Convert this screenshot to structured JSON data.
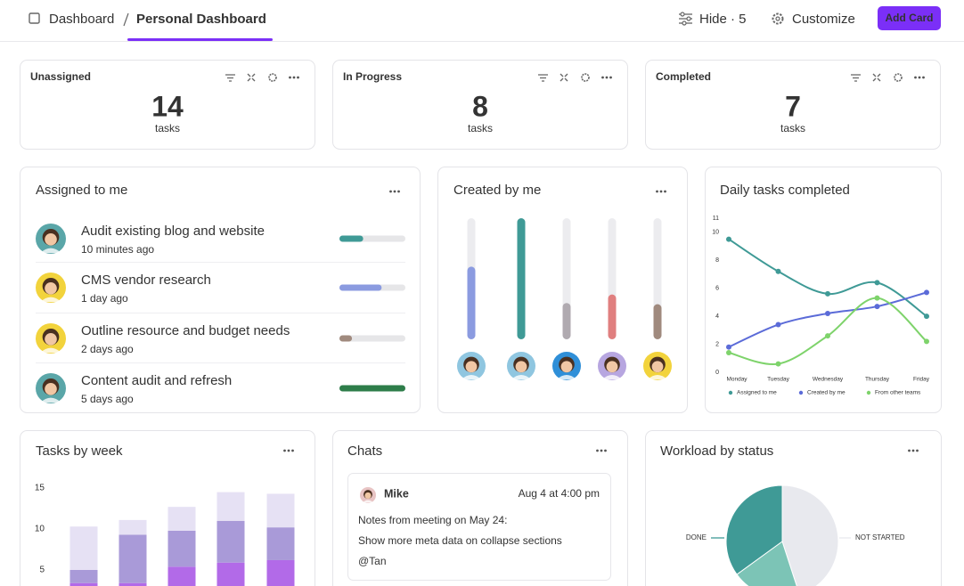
{
  "header": {
    "breadcrumb_root": "Dashboard",
    "breadcrumb_current": "Personal Dashboard",
    "hide": "Hide · 5",
    "customize": "Customize",
    "add_card": "Add Card"
  },
  "stats": [
    {
      "title": "Unassigned",
      "value": 14,
      "unit": "tasks"
    },
    {
      "title": "In Progress",
      "value": 8,
      "unit": "tasks"
    },
    {
      "title": "Completed",
      "value": 7,
      "unit": "tasks"
    }
  ],
  "assigned": {
    "title": "Assigned to me",
    "items": [
      {
        "task": "Audit existing blog and website",
        "time": "10 minutes ago",
        "progress": 36,
        "color": "#3f9a96"
      },
      {
        "task": "CMS vendor research",
        "time": "1 day ago",
        "progress": 64,
        "color": "#8b9be0"
      },
      {
        "task": "Outline resource and budget needs",
        "time": "2 days ago",
        "progress": 19,
        "color": "#a08a7e"
      },
      {
        "task": "Content audit and refresh",
        "time": "5 days ago",
        "progress": 100,
        "color": "#2e7d4a"
      }
    ]
  },
  "chat": {
    "title": "Chats",
    "author": "Mike",
    "time": "Aug 4 at 4:00 pm",
    "lines": [
      "Notes from meeting on May 24:",
      "Show more meta data on collapse sections"
    ],
    "mention": "@Tan"
  },
  "chart_data": [
    {
      "type": "progress",
      "title": "Created by me",
      "values": [
        60,
        100,
        30,
        37,
        29
      ],
      "colors": [
        "#8b9be0",
        "#3f9a96",
        "#b0aab0",
        "#e07f7f",
        "#a08a7e"
      ],
      "ylim": [
        0,
        100
      ]
    },
    {
      "type": "line",
      "title": "Daily tasks completed",
      "categories": [
        "Monday",
        "Tuesday",
        "Wednesday",
        "Thursday",
        "Friday"
      ],
      "series": [
        {
          "name": "Assigned to me",
          "color": "#3f9a96",
          "values": [
            9.5,
            7.2,
            5.6,
            6.4,
            4.0
          ]
        },
        {
          "name": "Created by me",
          "color": "#5b6bd8",
          "values": [
            1.8,
            3.4,
            4.2,
            4.7,
            5.7
          ]
        },
        {
          "name": "From other teams",
          "color": "#7ed36b",
          "values": [
            1.4,
            0.6,
            2.6,
            5.3,
            2.2
          ]
        }
      ],
      "ylim": [
        0,
        11
      ],
      "yticks": [
        0,
        2,
        4,
        6,
        8,
        10,
        11
      ],
      "legend": "bottom"
    },
    {
      "type": "stacked-bar",
      "title": "Tasks by week",
      "categories": [
        null,
        null,
        null,
        null,
        null
      ],
      "series": [
        {
          "color": "#b26ae8",
          "values": [
            3.4,
            3.4,
            5.4,
            5.9,
            6.2
          ]
        },
        {
          "color": "#a99ad8",
          "values": [
            1.6,
            5.9,
            4.4,
            5.1,
            4.0
          ]
        },
        {
          "color": "#e6e1f4",
          "values": [
            5.3,
            1.8,
            2.9,
            3.5,
            4.1
          ]
        }
      ],
      "ylim": [
        0,
        16
      ],
      "yticks": [
        5,
        10,
        15
      ]
    },
    {
      "type": "pie",
      "title": "Workload by status",
      "categories": [
        "NOT STARTED",
        null,
        "DONE"
      ],
      "values": [
        45,
        20,
        35
      ],
      "colors": [
        "#e8e9ee",
        "#7cc4b6",
        "#3f9a96"
      ]
    }
  ]
}
